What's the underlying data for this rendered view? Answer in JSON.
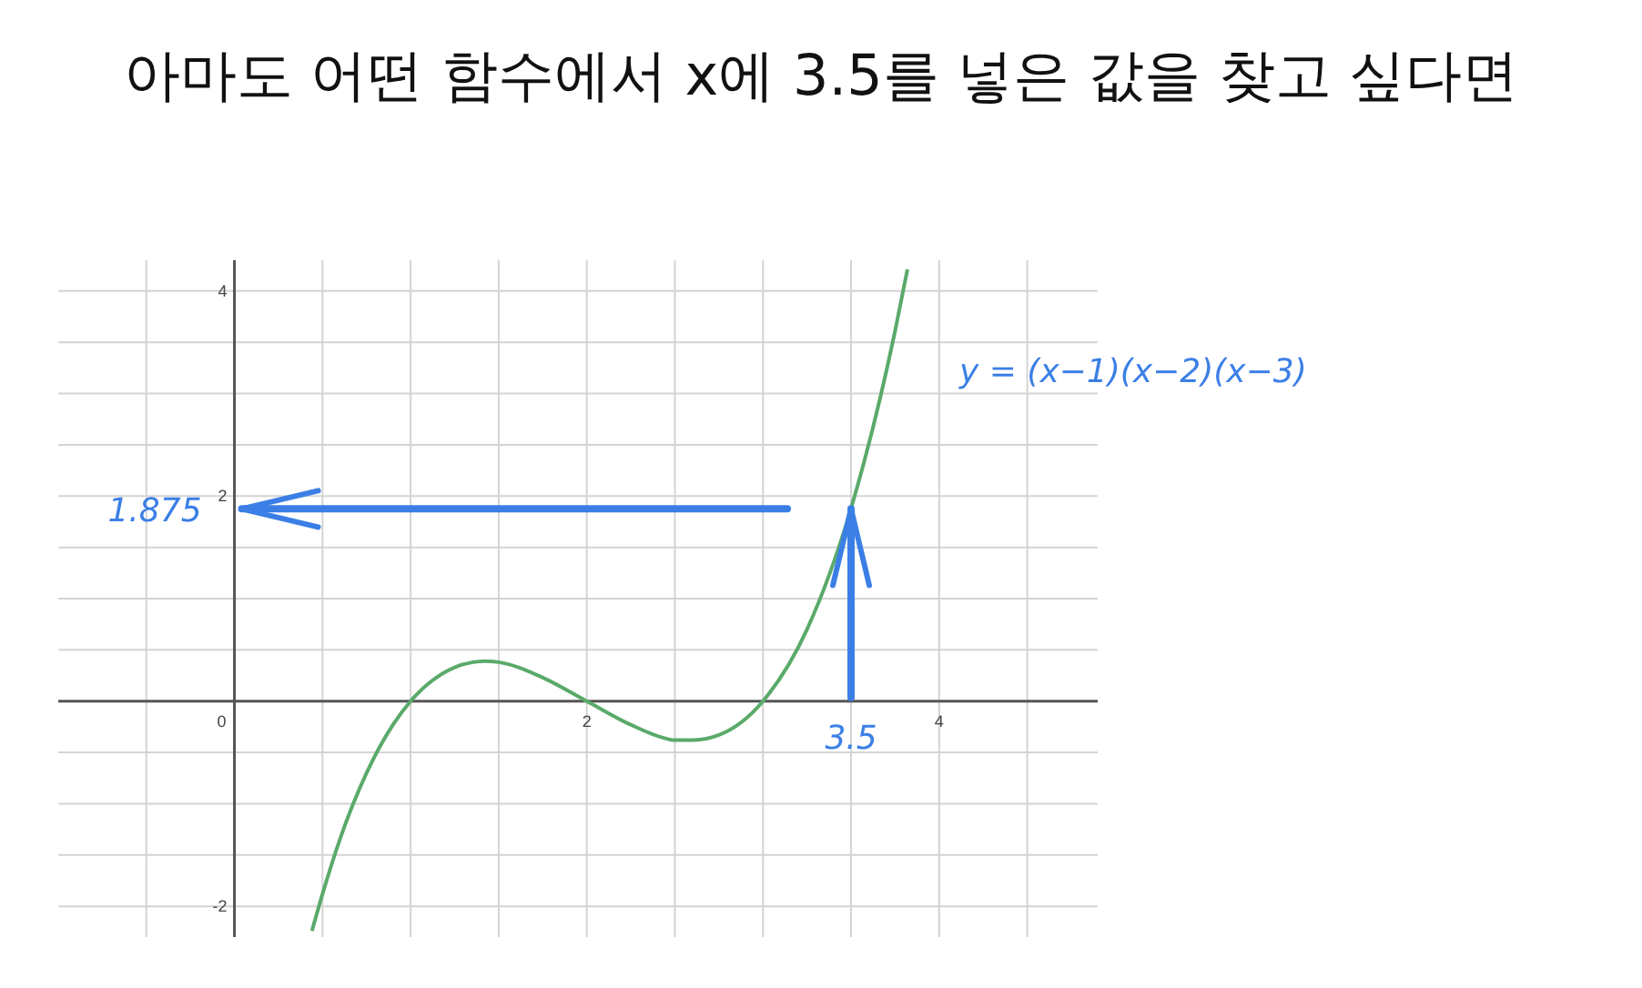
{
  "chart_data": {
    "type": "line",
    "title": "아마도 어떤 함수에서 x에 3.5를 넣은 값을 찾고 싶다면",
    "x": [
      0.44,
      0.5,
      0.6,
      0.75,
      0.9,
      1,
      1.1,
      1.25,
      1.42,
      1.5,
      1.75,
      2,
      2.25,
      2.42,
      2.5,
      2.6,
      2.75,
      3,
      3.25,
      3.5,
      3.75,
      3.82
    ],
    "series": [
      {
        "color": "#5aaa6a",
        "values": [
          -2.24,
          -1.88,
          -1.34,
          -0.7,
          -0.23,
          0,
          0.17,
          0.33,
          0.39,
          0.38,
          0.23,
          0,
          -0.23,
          -0.35,
          -0.38,
          -0.38,
          -0.33,
          0,
          0.7,
          1.88,
          3.61,
          4.21
        ]
      }
    ],
    "xlim": [
      -1,
      4.9
    ],
    "ylim": [
      -2.3,
      4.3
    ],
    "xticks": [
      {
        "value": -0.5,
        "label": null
      },
      0,
      {
        "value": 0.5,
        "label": null
      },
      {
        "value": 1,
        "label": null
      },
      {
        "value": 1.5,
        "label": null
      },
      2,
      {
        "value": 2.5,
        "label": null
      },
      {
        "value": 3,
        "label": null
      },
      {
        "value": 3.5,
        "label": null
      },
      4,
      {
        "value": 4.5,
        "label": null
      }
    ],
    "yticks": [
      -2,
      {
        "value": -1.5,
        "label": null
      },
      {
        "value": -1,
        "label": null
      },
      {
        "value": -0.5,
        "label": null
      },
      {
        "value": 0.5,
        "label": null
      },
      {
        "value": 1,
        "label": null
      },
      {
        "value": 1.5,
        "label": null
      },
      2,
      {
        "value": 2.5,
        "label": null
      },
      {
        "value": 3,
        "label": null
      },
      {
        "value": 3.5,
        "label": null
      },
      4
    ],
    "grid": true,
    "marker": "none",
    "line_style": "solid",
    "annotations": [
      "y = (x−1)(x−2)(x−3)",
      "1.875",
      {
        "text": "3.5",
        "x": 3.5,
        "y": 1.875
      }
    ]
  }
}
